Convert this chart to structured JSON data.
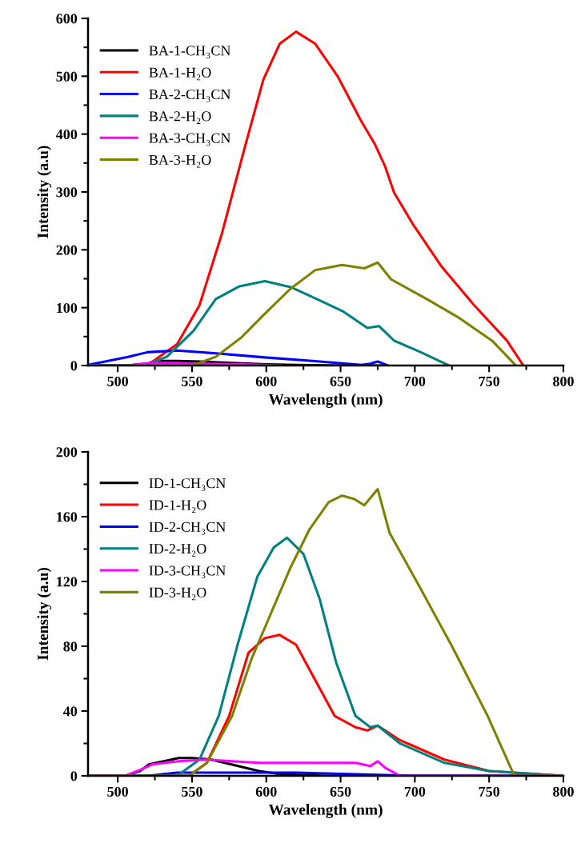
{
  "chart_data": [
    {
      "type": "line",
      "xlabel": "Wavelength (nm)",
      "ylabel": "Intensity (a.u)",
      "xlim": [
        480,
        800
      ],
      "xticks": [
        500,
        550,
        600,
        650,
        700,
        750,
        800
      ],
      "ylim": [
        0,
        600
      ],
      "yticks": [
        0,
        100,
        200,
        300,
        400,
        500,
        600
      ],
      "legend": "top left",
      "grid": false,
      "series": [
        {
          "name": "BA-1-CH₃CN",
          "color": "#000000",
          "x": [
            480,
            510,
            520,
            525,
            540,
            555,
            580,
            600,
            620,
            650,
            680
          ],
          "values": [
            0,
            1,
            3,
            8,
            8,
            7,
            4,
            2,
            1,
            0,
            0
          ]
        },
        {
          "name": "BA-1-H₂O",
          "color": "#ff0000",
          "x": [
            480,
            510,
            522,
            540,
            555,
            570,
            585,
            598,
            609,
            620,
            633,
            648,
            664,
            673,
            680,
            686,
            699,
            718,
            740,
            762,
            773
          ],
          "values": [
            0,
            0,
            4,
            37,
            104,
            227,
            372,
            494,
            556,
            577,
            556,
            500,
            422,
            383,
            344,
            299,
            243,
            171,
            104,
            43,
            0
          ]
        },
        {
          "name": "BA-2-CH₃CN",
          "color": "#0000ff",
          "x": [
            480,
            507,
            520,
            540,
            566,
            599,
            631,
            664,
            670,
            675,
            682
          ],
          "values": [
            1,
            15,
            23,
            26,
            21,
            14,
            8,
            1,
            3,
            7,
            0
          ]
        },
        {
          "name": "BA-2-H₂O",
          "color": "#008080",
          "x": [
            480,
            518,
            533,
            551,
            566,
            582,
            599,
            617,
            634,
            652,
            668,
            676,
            686,
            704,
            723
          ],
          "values": [
            0,
            0,
            15,
            60,
            115,
            137,
            146,
            135,
            115,
            93,
            65,
            68,
            43,
            23,
            0
          ]
        },
        {
          "name": "BA-3-CH₃CN",
          "color": "#ff00ff",
          "x": [
            480,
            510,
            520,
            540,
            560,
            585,
            610
          ],
          "values": [
            0,
            1,
            4,
            4,
            3,
            2,
            0
          ]
        },
        {
          "name": "BA-3-H₂O",
          "color": "#808000",
          "x": [
            480,
            550,
            566,
            583,
            598,
            616,
            633,
            651,
            666,
            675,
            684,
            708,
            730,
            752,
            768
          ],
          "values": [
            0,
            0,
            15,
            48,
            87,
            132,
            165,
            174,
            168,
            178,
            149,
            115,
            82,
            43,
            0
          ]
        }
      ]
    },
    {
      "type": "line",
      "xlabel": "Wavelength (nm)",
      "ylabel": "Intensity (a.u)",
      "xlim": [
        480,
        800
      ],
      "xticks": [
        500,
        550,
        600,
        650,
        700,
        750,
        800
      ],
      "ylim": [
        0,
        200
      ],
      "yticks": [
        0,
        40,
        80,
        120,
        160,
        200
      ],
      "legend": "top left",
      "grid": false,
      "series": [
        {
          "name": "ID-1-CH₃CN",
          "color": "#000000",
          "x": [
            480,
            505,
            515,
            521,
            541,
            550,
            563,
            581,
            595,
            610,
            640,
            800
          ],
          "values": [
            0,
            0,
            3,
            7,
            11,
            11,
            10,
            6,
            3,
            1,
            0,
            0
          ]
        },
        {
          "name": "ID-1-H₂O",
          "color": "#ff0000",
          "x": [
            480,
            548,
            560,
            575,
            588,
            599,
            609,
            620,
            633,
            646,
            660,
            668,
            675,
            690,
            720,
            750,
            800
          ],
          "values": [
            0,
            0,
            8,
            37,
            76,
            85,
            87,
            81,
            59,
            37,
            30,
            28,
            31,
            22,
            10,
            3,
            0
          ]
        },
        {
          "name": "ID-2-CH₃CN",
          "color": "#0000ff",
          "x": [
            480,
            520,
            540,
            580,
            620,
            660,
            700,
            800
          ],
          "values": [
            0,
            0,
            2,
            2,
            2,
            1,
            0,
            0
          ]
        },
        {
          "name": "ID-2-H₂O",
          "color": "#008080",
          "x": [
            480,
            540,
            555,
            568,
            581,
            594,
            605,
            614,
            625,
            636,
            647,
            660,
            670,
            675,
            690,
            720,
            750,
            800
          ],
          "values": [
            0,
            0,
            10,
            37,
            82,
            123,
            141,
            147,
            137,
            109,
            70,
            37,
            30,
            31,
            20,
            8,
            3,
            0
          ]
        },
        {
          "name": "ID-3-CH₃CN",
          "color": "#ff00ff",
          "x": [
            480,
            505,
            516,
            523,
            541,
            559,
            595,
            630,
            660,
            670,
            675,
            680,
            690,
            800
          ],
          "values": [
            0,
            0,
            4,
            7,
            9,
            10,
            8,
            8,
            8,
            6,
            9,
            5,
            0,
            0
          ]
        },
        {
          "name": "ID-3-H₂O",
          "color": "#808000",
          "x": [
            480,
            548,
            560,
            577,
            590,
            603,
            616,
            629,
            642,
            651,
            659,
            666,
            675,
            683,
            703,
            725,
            749,
            767,
            800
          ],
          "values": [
            0,
            0,
            8,
            37,
            72,
            100,
            128,
            152,
            169,
            173,
            171,
            167,
            177,
            150,
            117,
            80,
            37,
            0,
            0
          ]
        }
      ]
    }
  ]
}
